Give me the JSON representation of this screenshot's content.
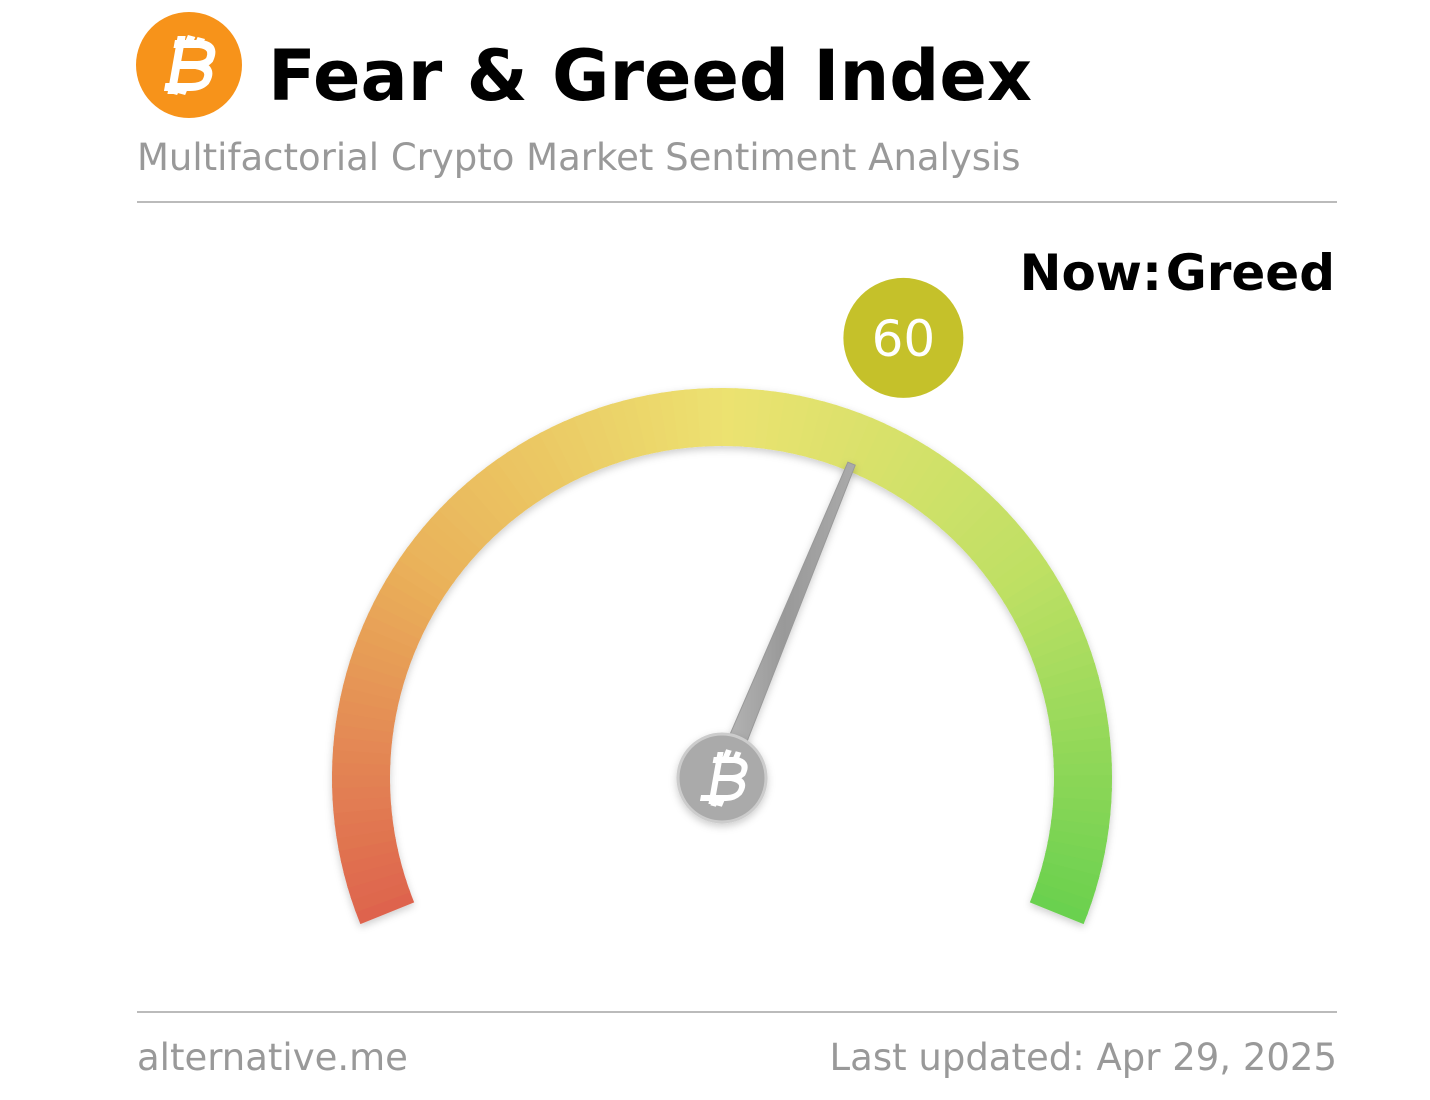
{
  "chart_data": {
    "type": "gauge",
    "title": "Fear & Greed Index",
    "subtitle": "Multifactorial Crypto Market Sentiment Analysis",
    "now_label": "Now:",
    "classification": "Greed",
    "value": 60,
    "color": "#c5c12a",
    "ylim": [
      0,
      100
    ],
    "source": "alternative.me",
    "updated": "Last updated: Apr 29, 2025"
  }
}
